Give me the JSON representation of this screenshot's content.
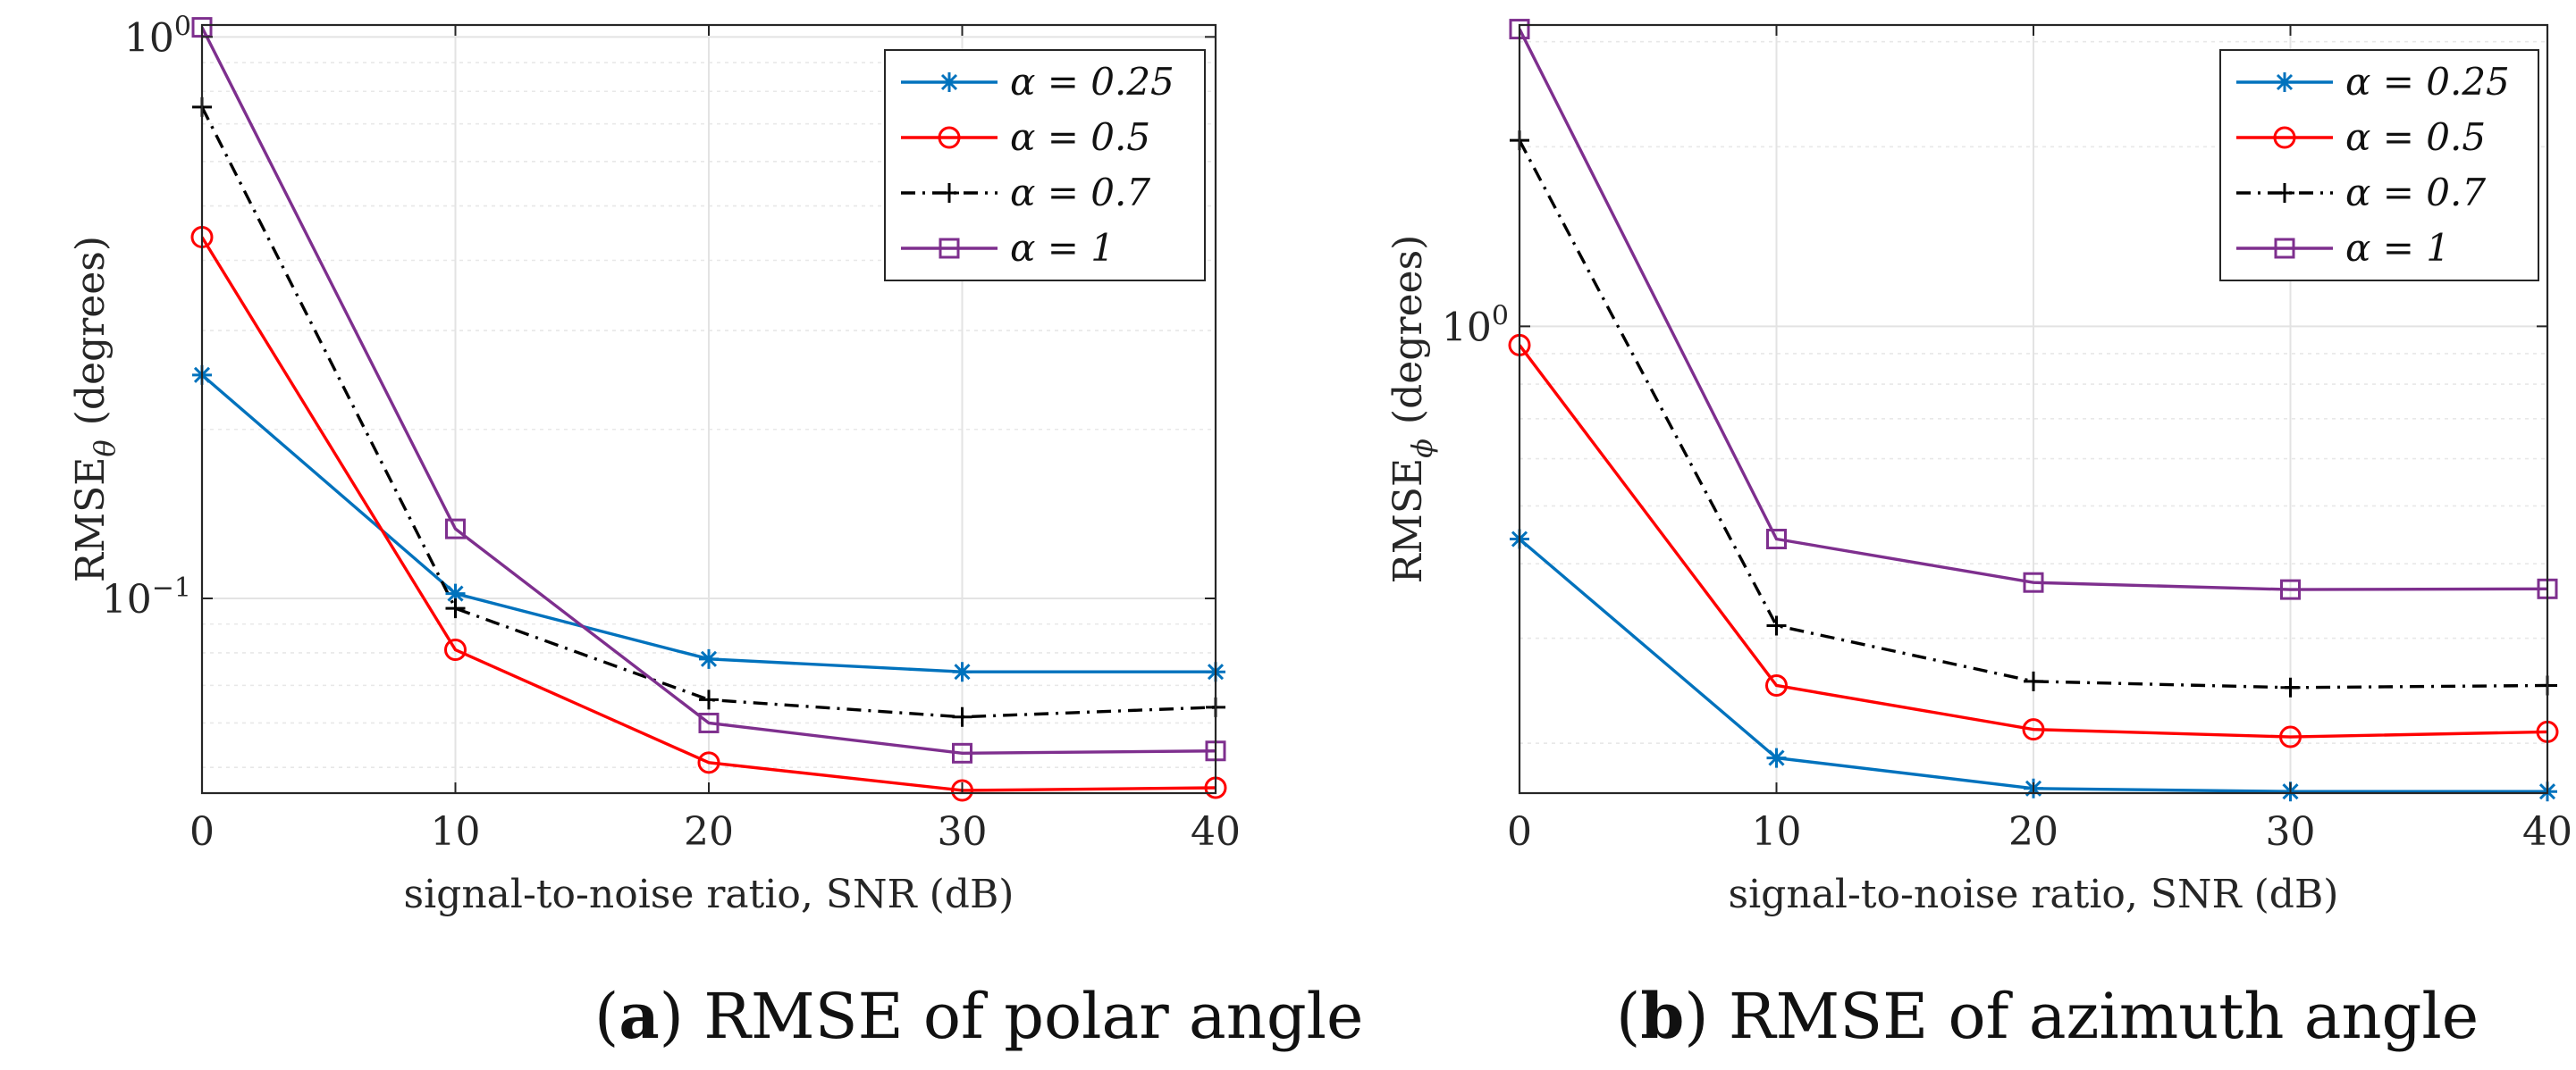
{
  "chart_data": [
    {
      "type": "line",
      "id": "a",
      "caption_letter": "a",
      "caption_text": "RMSE of polar angle",
      "xlabel": "signal-to-noise ratio, SNR (dB)",
      "ylabel_main": "RMSE",
      "ylabel_sub": "θ",
      "ylabel_unit": "(degrees)",
      "yscale": "log",
      "xlim": [
        0,
        40
      ],
      "ylim": [
        0.045,
        1.05
      ],
      "x": [
        0,
        10,
        20,
        30,
        40
      ],
      "xticks": [
        0,
        10,
        20,
        30,
        40
      ],
      "yticks": [
        {
          "value": 1,
          "base": "10",
          "exp": "0"
        },
        {
          "value": 0.1,
          "base": "10",
          "exp": "−1"
        }
      ],
      "legend_position": "top-right",
      "series": [
        {
          "name": "α = 0.25",
          "values": [
            0.25,
            0.102,
            0.078,
            0.074,
            0.074
          ],
          "color": "#0072BD",
          "marker": "star",
          "dash": "solid"
        },
        {
          "name": "α = 0.5",
          "values": [
            0.44,
            0.081,
            0.051,
            0.0455,
            0.046
          ],
          "color": "#FF0000",
          "marker": "circle",
          "dash": "solid"
        },
        {
          "name": "α = 0.7",
          "values": [
            0.75,
            0.096,
            0.066,
            0.0615,
            0.064
          ],
          "color": "#000000",
          "marker": "plus",
          "dash": "dashdot"
        },
        {
          "name": "α = 1",
          "values": [
            1.04,
            0.133,
            0.06,
            0.053,
            0.0535
          ],
          "color": "#7E2F8E",
          "marker": "square",
          "dash": "solid"
        }
      ]
    },
    {
      "type": "line",
      "id": "b",
      "caption_letter": "b",
      "caption_text": "RMSE of azimuth angle",
      "xlabel": "signal-to-noise ratio, SNR (dB)",
      "ylabel_main": "RMSE",
      "ylabel_sub": "ϕ",
      "ylabel_unit": "(degrees)",
      "yscale": "log",
      "xlim": [
        0,
        40
      ],
      "ylim": [
        0.165,
        3.2
      ],
      "x": [
        0,
        10,
        20,
        30,
        40
      ],
      "xticks": [
        0,
        10,
        20,
        30,
        40
      ],
      "yticks": [
        {
          "value": 1,
          "base": "10",
          "exp": "0"
        }
      ],
      "legend_position": "top-right",
      "series": [
        {
          "name": "α = 0.25",
          "values": [
            0.44,
            0.189,
            0.168,
            0.166,
            0.166
          ],
          "color": "#0072BD",
          "marker": "star",
          "dash": "solid"
        },
        {
          "name": "α = 0.5",
          "values": [
            0.93,
            0.25,
            0.211,
            0.205,
            0.209
          ],
          "color": "#FF0000",
          "marker": "circle",
          "dash": "solid"
        },
        {
          "name": "α = 0.7",
          "values": [
            2.05,
            0.315,
            0.254,
            0.248,
            0.25
          ],
          "color": "#000000",
          "marker": "plus",
          "dash": "dashdot"
        },
        {
          "name": "α = 1",
          "values": [
            3.15,
            0.44,
            0.372,
            0.362,
            0.363
          ],
          "color": "#7E2F8E",
          "marker": "square",
          "dash": "solid"
        }
      ]
    }
  ]
}
